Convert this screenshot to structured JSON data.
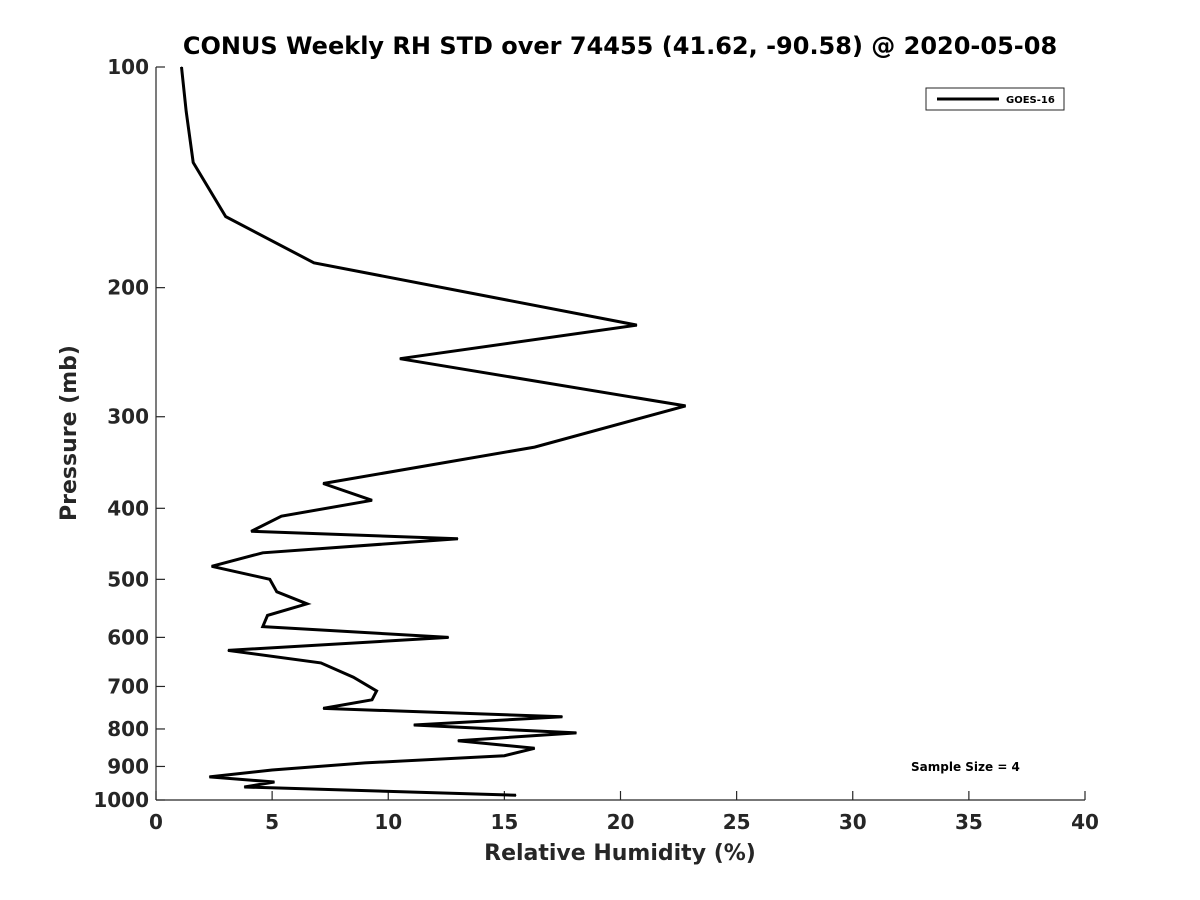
{
  "chart_data": {
    "type": "line",
    "title": "CONUS Weekly RH STD over 74455 (41.62, -90.58) @ 2020-05-08",
    "xlabel": "Relative Humidity (%)",
    "ylabel": "Pressure (mb)",
    "xlim": [
      0,
      40
    ],
    "ylim": [
      1000,
      100
    ],
    "y_scale": "log",
    "y_reversed": true,
    "grid": false,
    "legend_position": "top-right",
    "x_ticks": [
      "0",
      "5",
      "10",
      "15",
      "20",
      "25",
      "30",
      "35",
      "40"
    ],
    "y_ticks": [
      "100",
      "200",
      "300",
      "400",
      "500",
      "600",
      "700",
      "800",
      "900",
      "1000"
    ],
    "series": [
      {
        "name": "GOES-16",
        "color": "#000000",
        "points": [
          [
            1.1,
            100
          ],
          [
            1.3,
            115
          ],
          [
            1.6,
            135
          ],
          [
            3.0,
            160
          ],
          [
            6.8,
            185
          ],
          [
            20.7,
            225
          ],
          [
            10.5,
            250
          ],
          [
            22.8,
            290
          ],
          [
            16.3,
            330
          ],
          [
            7.2,
            370
          ],
          [
            9.3,
            390
          ],
          [
            5.4,
            410
          ],
          [
            4.1,
            430
          ],
          [
            13.0,
            440
          ],
          [
            4.6,
            460
          ],
          [
            2.4,
            480
          ],
          [
            4.9,
            500
          ],
          [
            5.2,
            520
          ],
          [
            6.5,
            540
          ],
          [
            4.8,
            560
          ],
          [
            4.6,
            580
          ],
          [
            12.6,
            600
          ],
          [
            3.1,
            625
          ],
          [
            7.1,
            650
          ],
          [
            8.5,
            680
          ],
          [
            9.5,
            710
          ],
          [
            9.3,
            730
          ],
          [
            7.2,
            750
          ],
          [
            17.5,
            770
          ],
          [
            11.1,
            790
          ],
          [
            18.1,
            810
          ],
          [
            13.0,
            830
          ],
          [
            16.3,
            850
          ],
          [
            15.0,
            870
          ],
          [
            9.0,
            890
          ],
          [
            5.0,
            910
          ],
          [
            2.3,
            930
          ],
          [
            5.1,
            945
          ],
          [
            3.8,
            960
          ],
          [
            15.5,
            985
          ]
        ]
      }
    ],
    "annotations": [
      "Sample Size = 4"
    ]
  }
}
